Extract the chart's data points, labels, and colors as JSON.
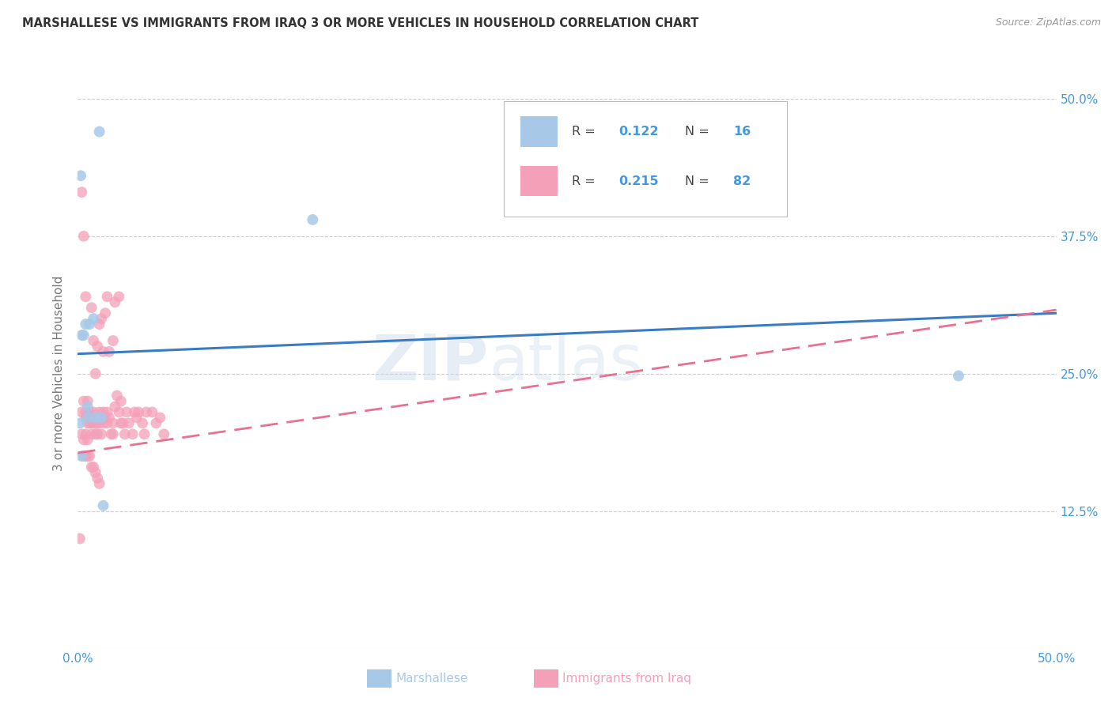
{
  "title": "MARSHALLESE VS IMMIGRANTS FROM IRAQ 3 OR MORE VEHICLES IN HOUSEHOLD CORRELATION CHART",
  "source": "Source: ZipAtlas.com",
  "ylabel": "3 or more Vehicles in Household",
  "xlabel_marshallese": "Marshallese",
  "xlabel_iraq": "Immigrants from Iraq",
  "xmin": 0.0,
  "xmax": 0.5,
  "ymin": 0.0,
  "ymax": 0.5,
  "ytick_positions": [
    0.0,
    0.125,
    0.25,
    0.375,
    0.5
  ],
  "ytick_labels": [
    "",
    "12.5%",
    "25.0%",
    "37.5%",
    "50.0%"
  ],
  "legend_r_blue": "0.122",
  "legend_n_blue": "16",
  "legend_r_pink": "0.215",
  "legend_n_pink": "82",
  "blue_scatter_color": "#a8c8e8",
  "pink_scatter_color": "#f4a0b8",
  "blue_line_color": "#3a7cc4",
  "pink_line_color": "#e87090",
  "grid_color": "#cccccc",
  "axis_label_color": "#4499dd",
  "ylabel_color": "#777777",
  "title_color": "#333333",
  "source_color": "#999999",
  "blue_line_y0": 0.268,
  "blue_line_y1": 0.305,
  "pink_line_y0": 0.178,
  "pink_line_y1": 0.308,
  "marshallese_x": [
    0.001,
    0.0015,
    0.002,
    0.003,
    0.004,
    0.005,
    0.006,
    0.008,
    0.009,
    0.011,
    0.012,
    0.013,
    0.002,
    0.12,
    0.45,
    0.005
  ],
  "marshallese_y": [
    0.205,
    0.43,
    0.285,
    0.285,
    0.295,
    0.21,
    0.295,
    0.3,
    0.21,
    0.47,
    0.21,
    0.13,
    0.175,
    0.39,
    0.248,
    0.22
  ],
  "iraq_x": [
    0.001,
    0.002,
    0.002,
    0.003,
    0.003,
    0.004,
    0.004,
    0.004,
    0.005,
    0.005,
    0.005,
    0.006,
    0.006,
    0.007,
    0.007,
    0.008,
    0.008,
    0.008,
    0.009,
    0.009,
    0.01,
    0.01,
    0.011,
    0.011,
    0.012,
    0.012,
    0.013,
    0.013,
    0.014,
    0.014,
    0.015,
    0.015,
    0.016,
    0.017,
    0.018,
    0.018,
    0.019,
    0.02,
    0.021,
    0.022,
    0.022,
    0.023,
    0.024,
    0.025,
    0.026,
    0.028,
    0.029,
    0.03,
    0.031,
    0.033,
    0.034,
    0.035,
    0.038,
    0.04,
    0.042,
    0.044,
    0.002,
    0.003,
    0.004,
    0.005,
    0.006,
    0.007,
    0.008,
    0.009,
    0.01,
    0.011,
    0.012,
    0.013,
    0.015,
    0.016,
    0.018,
    0.019,
    0.021,
    0.003,
    0.004,
    0.005,
    0.006,
    0.007,
    0.008,
    0.009,
    0.01,
    0.011
  ],
  "iraq_y": [
    0.1,
    0.195,
    0.215,
    0.225,
    0.19,
    0.21,
    0.215,
    0.195,
    0.205,
    0.225,
    0.21,
    0.215,
    0.205,
    0.205,
    0.195,
    0.21,
    0.205,
    0.215,
    0.195,
    0.205,
    0.205,
    0.195,
    0.215,
    0.205,
    0.195,
    0.21,
    0.205,
    0.215,
    0.21,
    0.305,
    0.215,
    0.205,
    0.21,
    0.195,
    0.205,
    0.195,
    0.315,
    0.23,
    0.215,
    0.225,
    0.205,
    0.205,
    0.195,
    0.215,
    0.205,
    0.195,
    0.215,
    0.21,
    0.215,
    0.205,
    0.195,
    0.215,
    0.215,
    0.205,
    0.21,
    0.195,
    0.415,
    0.375,
    0.32,
    0.19,
    0.215,
    0.31,
    0.28,
    0.25,
    0.275,
    0.295,
    0.3,
    0.27,
    0.32,
    0.27,
    0.28,
    0.22,
    0.32,
    0.175,
    0.175,
    0.175,
    0.175,
    0.165,
    0.165,
    0.16,
    0.155,
    0.15
  ]
}
